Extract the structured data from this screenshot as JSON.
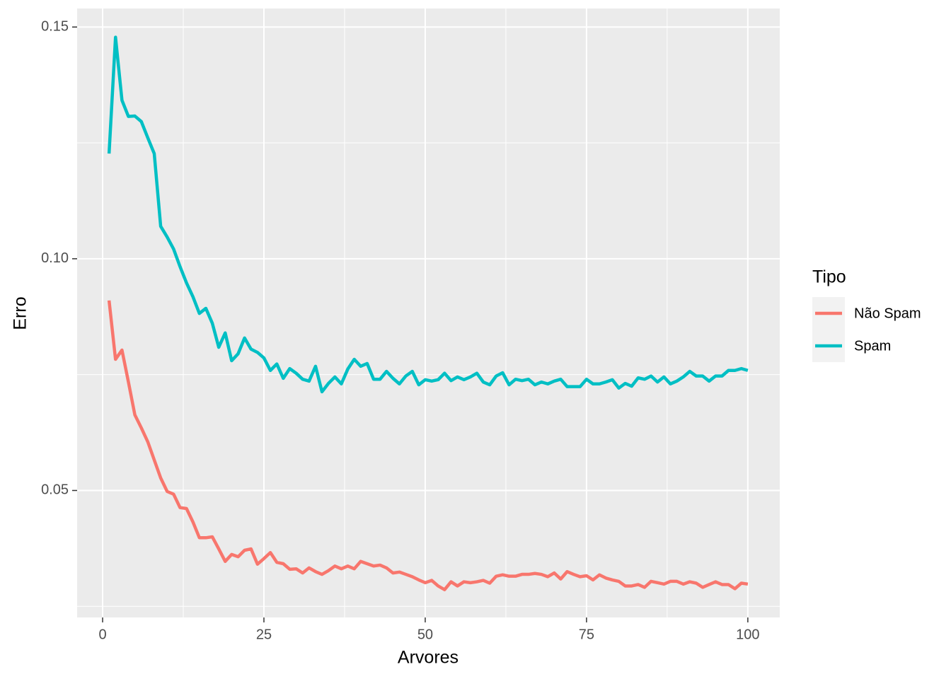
{
  "chart_data": {
    "type": "line",
    "xlabel": "Arvores",
    "ylabel": "Erro",
    "legend_title": "Tipo",
    "x": [
      1,
      2,
      3,
      4,
      5,
      6,
      7,
      8,
      9,
      10,
      11,
      12,
      13,
      14,
      15,
      16,
      17,
      18,
      19,
      20,
      21,
      22,
      23,
      24,
      25,
      26,
      27,
      28,
      29,
      30,
      31,
      32,
      33,
      34,
      35,
      36,
      37,
      38,
      39,
      40,
      41,
      42,
      43,
      44,
      45,
      46,
      47,
      48,
      49,
      50,
      51,
      52,
      53,
      54,
      55,
      56,
      57,
      58,
      59,
      60,
      61,
      62,
      63,
      64,
      65,
      66,
      67,
      68,
      69,
      70,
      71,
      72,
      73,
      74,
      75,
      76,
      77,
      78,
      79,
      80,
      81,
      82,
      83,
      84,
      85,
      86,
      87,
      88,
      89,
      90,
      91,
      92,
      93,
      94,
      95,
      96,
      97,
      98,
      99,
      100
    ],
    "series": [
      {
        "name": "Não Spam",
        "color": "#F8766D",
        "values": [
          0.091,
          0.0783,
          0.0803,
          0.0734,
          0.0663,
          0.0635,
          0.0605,
          0.0566,
          0.0527,
          0.0498,
          0.0492,
          0.0463,
          0.0461,
          0.0432,
          0.0398,
          0.0398,
          0.04,
          0.0374,
          0.0347,
          0.0362,
          0.0357,
          0.0371,
          0.0374,
          0.0341,
          0.0353,
          0.0366,
          0.0345,
          0.0342,
          0.033,
          0.0331,
          0.0322,
          0.0333,
          0.0325,
          0.0319,
          0.0327,
          0.0337,
          0.0331,
          0.0337,
          0.0331,
          0.0347,
          0.0342,
          0.0337,
          0.0339,
          0.0333,
          0.0322,
          0.0324,
          0.0319,
          0.0314,
          0.0307,
          0.0301,
          0.0306,
          0.0294,
          0.0286,
          0.0303,
          0.0294,
          0.0303,
          0.0301,
          0.0303,
          0.0306,
          0.03,
          0.0315,
          0.0318,
          0.0315,
          0.0315,
          0.0319,
          0.0319,
          0.0321,
          0.0319,
          0.0314,
          0.0322,
          0.0309,
          0.0325,
          0.0319,
          0.0314,
          0.0316,
          0.0307,
          0.0318,
          0.0311,
          0.0307,
          0.0304,
          0.0294,
          0.0294,
          0.0297,
          0.0291,
          0.0304,
          0.0301,
          0.0298,
          0.0304,
          0.0304,
          0.0298,
          0.0303,
          0.03,
          0.0291,
          0.0297,
          0.0303,
          0.0297,
          0.0297,
          0.0288,
          0.03,
          0.0298
        ]
      },
      {
        "name": "Spam",
        "color": "#00BFC4",
        "values": [
          0.1227,
          0.1478,
          0.1342,
          0.1307,
          0.1308,
          0.1296,
          0.1261,
          0.1227,
          0.107,
          0.1047,
          0.1021,
          0.0983,
          0.0948,
          0.0918,
          0.0882,
          0.0893,
          0.0861,
          0.0809,
          0.084,
          0.078,
          0.0795,
          0.0829,
          0.0805,
          0.0798,
          0.0786,
          0.0759,
          0.0773,
          0.0742,
          0.0763,
          0.0753,
          0.074,
          0.0736,
          0.0768,
          0.0713,
          0.0731,
          0.0745,
          0.073,
          0.0762,
          0.0783,
          0.0768,
          0.0774,
          0.074,
          0.074,
          0.0757,
          0.0742,
          0.073,
          0.0747,
          0.0757,
          0.0728,
          0.0739,
          0.0736,
          0.0739,
          0.0753,
          0.0737,
          0.0745,
          0.0739,
          0.0745,
          0.0753,
          0.0734,
          0.0728,
          0.0747,
          0.0754,
          0.0728,
          0.074,
          0.0737,
          0.074,
          0.0728,
          0.0734,
          0.073,
          0.0736,
          0.074,
          0.0724,
          0.0724,
          0.0724,
          0.074,
          0.073,
          0.073,
          0.0734,
          0.0739,
          0.0721,
          0.0731,
          0.0725,
          0.0743,
          0.074,
          0.0747,
          0.0734,
          0.0745,
          0.073,
          0.0736,
          0.0745,
          0.0757,
          0.0747,
          0.0747,
          0.0736,
          0.0747,
          0.0747,
          0.0759,
          0.0759,
          0.0763,
          0.0759
        ]
      }
    ],
    "xlim": [
      -3.95,
      104.95
    ],
    "xticks": [
      0,
      25,
      50,
      75,
      100
    ],
    "xminor": [
      12.5,
      37.5,
      62.5,
      87.5
    ],
    "ylim": [
      0.0226,
      0.154
    ],
    "yticks": [
      {
        "value": 0.05,
        "label": "0.05"
      },
      {
        "value": 0.1,
        "label": "0.10"
      },
      {
        "value": 0.15,
        "label": "0.15"
      }
    ],
    "yminor": [
      0.025,
      0.075,
      0.125
    ],
    "grid": true,
    "legend": "right"
  }
}
